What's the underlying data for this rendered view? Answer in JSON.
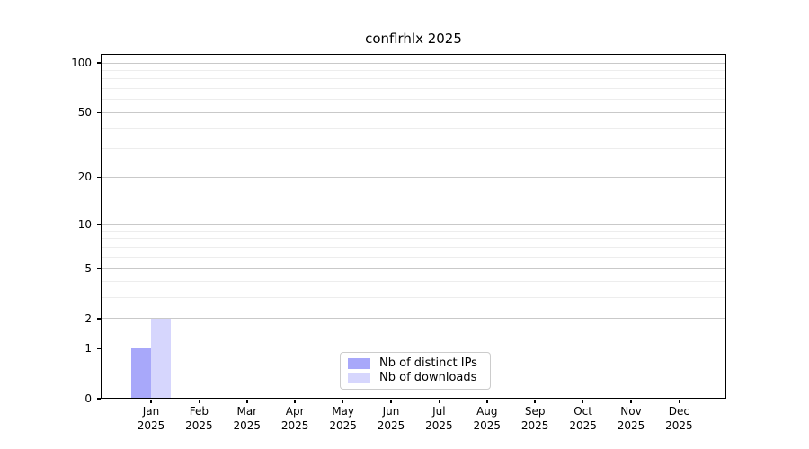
{
  "chart_data": {
    "type": "bar",
    "title": "conflrhlx 2025",
    "year": "2025",
    "categories": [
      "Jan",
      "Feb",
      "Mar",
      "Apr",
      "May",
      "Jun",
      "Jul",
      "Aug",
      "Sep",
      "Oct",
      "Nov",
      "Dec"
    ],
    "series": [
      {
        "name": "Nb of distinct IPs",
        "color": "rgba(0,0,240,0.34)",
        "values": [
          1,
          0,
          0,
          0,
          0,
          0,
          0,
          0,
          0,
          0,
          0,
          0
        ]
      },
      {
        "name": "Nb of downloads",
        "color": "rgba(0,0,240,0.16)",
        "values": [
          2,
          0,
          0,
          0,
          0,
          0,
          0,
          0,
          0,
          0,
          0,
          0
        ]
      }
    ],
    "yticks": [
      0,
      1,
      2,
      5,
      10,
      20,
      50,
      100
    ],
    "minor_gridlines": [
      3,
      4,
      6,
      7,
      8,
      9,
      30,
      40,
      60,
      70,
      80,
      90
    ],
    "yscale": "log1p",
    "ylim": [
      0,
      113
    ],
    "xlabel": "",
    "ylabel": "",
    "grid": true,
    "legend_position": "lower center",
    "colors": {
      "major_grid": "#c9c9c9",
      "minor_grid": "#ededed",
      "spine": "#000000",
      "text": "#000000",
      "background": "#ffffff"
    }
  }
}
